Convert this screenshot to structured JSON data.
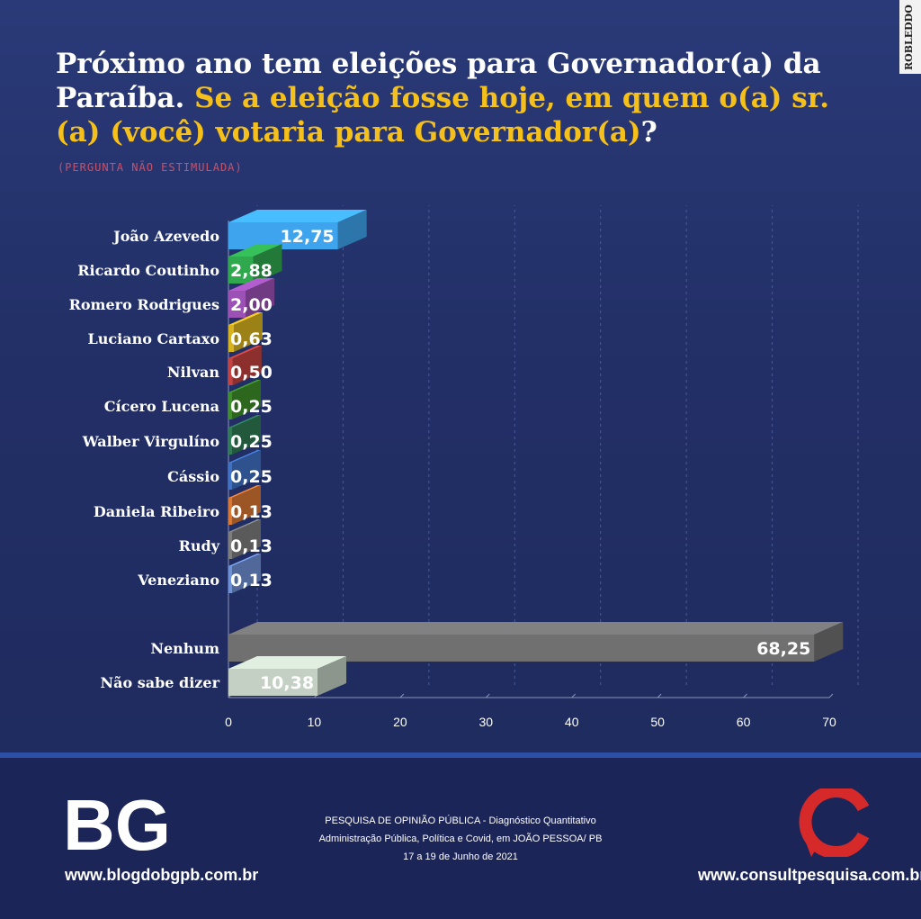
{
  "title": {
    "part1": "Próximo ano tem eleições para Governador(a) da Paraíba.",
    "part2": "Se a eleição fosse hoje, em quem o(a) sr.(a) (você) votaria para Governador(a)",
    "part3": "?"
  },
  "subtitle": "(PERGUNTA NÃO ESTIMULADA)",
  "watermark": "ROBLEDDO",
  "chart_data": {
    "type": "bar",
    "orientation": "horizontal",
    "title": "Próximo ano tem eleições para Governador(a) da Paraíba. Se a eleição fosse hoje, em quem o(a) sr.(a) (você) votaria para Governador(a)?",
    "categories": [
      "João Azevedo",
      "Ricardo Coutinho",
      "Romero Rodrigues",
      "Luciano Cartaxo",
      "Nilvan",
      "Cícero Lucena",
      "Walber Virgulíno",
      "Cássio",
      "Daniela Ribeiro",
      "Rudy",
      "Veneziano",
      "Nenhum",
      "Não sabe dizer"
    ],
    "values": [
      12.75,
      2.88,
      2.0,
      0.63,
      0.5,
      0.25,
      0.25,
      0.25,
      0.13,
      0.13,
      0.13,
      68.25,
      10.38
    ],
    "value_labels": [
      "12,75",
      "2,88",
      "2,00",
      "0,63",
      "0,50",
      "0,25",
      "0,25",
      "0,25",
      "0,13",
      "0,13",
      "0,13",
      "68,25",
      "10,38"
    ],
    "colors": [
      "#3fa4ee",
      "#2fa84e",
      "#9c52b4",
      "#d7b31f",
      "#c4423f",
      "#3e8f2a",
      "#2f7b55",
      "#3f72c4",
      "#d97734",
      "#7d7d7d",
      "#6f92d6",
      "#707070",
      "#c4d0c4"
    ],
    "xlim": [
      0,
      70
    ],
    "xticks": [
      "0",
      "10",
      "20",
      "30",
      "40",
      "50",
      "60",
      "70"
    ],
    "grid": true
  },
  "footer": {
    "bg_logo": "BG",
    "bg_url": "www.blogdobgpb.com.br",
    "line1": "PESQUISA DE OPINIÃO PÚBLICA - Diagnóstico Quantitativo",
    "line2": "Administração Pública, Política e Covid, em JOÃO PESSOA/ PB",
    "line3": "17 a 19 de Junho de 2021",
    "cs_url": "www.consultpesquisa.com.br"
  }
}
